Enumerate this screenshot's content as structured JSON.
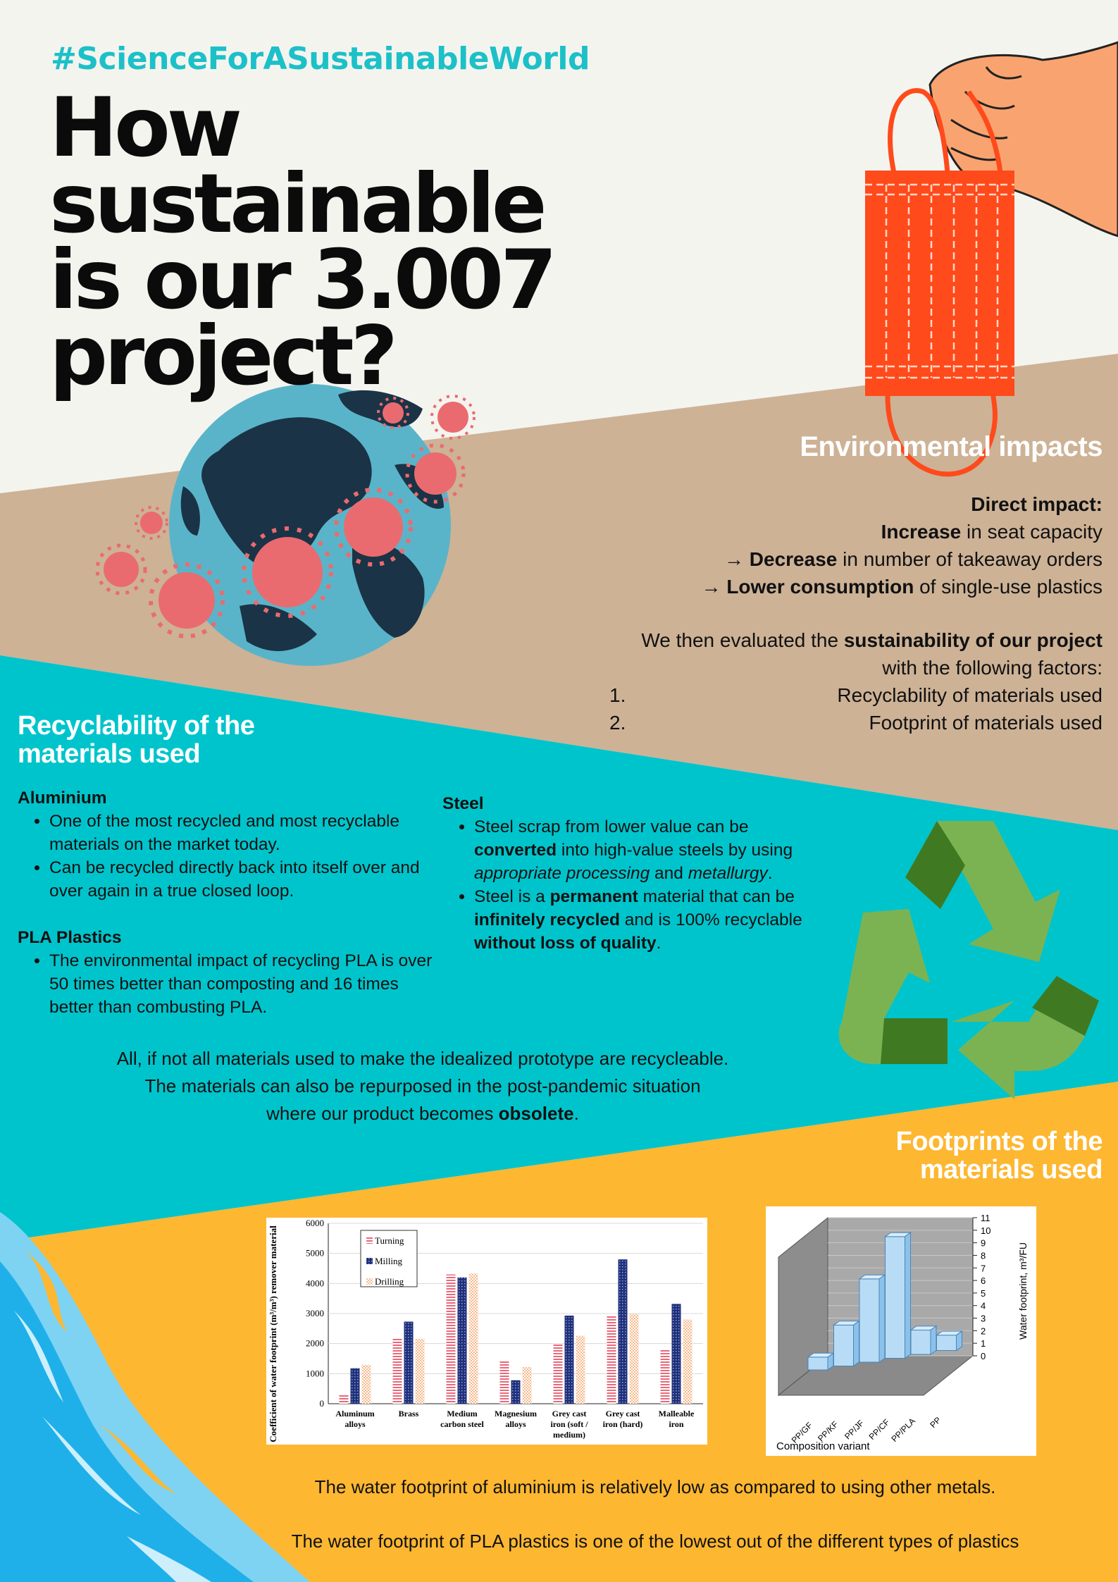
{
  "hashtag": "#ScienceForASustainableWorld",
  "title": {
    "line1": "How sustainable",
    "line2": "is our 3.007",
    "line3": "project?"
  },
  "environmental": {
    "heading": "Environmental impacts",
    "direct_impact": "Direct impact:",
    "line1_bold": "Increase",
    "line1_rest": " in seat capacity",
    "line2_arrow": "→",
    "line2_bold": "Decrease",
    "line2_rest": " in number of takeaway orders",
    "line3_arrow": "→",
    "line3_bold": "Lower consumption",
    "line3_rest": " of single-use plastics",
    "eval_pre": "We then evaluated the ",
    "eval_bold": "sustainability of our project",
    "eval_post": " with the following factors:",
    "factors": [
      {
        "num": "1.",
        "text": "Recyclability of materials used"
      },
      {
        "num": "2.",
        "text": "Footprint of materials used"
      }
    ]
  },
  "recyclability": {
    "heading_line1": "Recyclability of the",
    "heading_line2": "materials used",
    "aluminium": {
      "heading": "Aluminium",
      "bullet1": "One of the most recycled and most recyclable materials on the market today.",
      "bullet2": "Can be recycled directly back into itself over and over again in a true closed loop."
    },
    "pla": {
      "heading": "PLA Plastics",
      "bullet1": "The environmental impact of recycling PLA is over 50 times better than composting and 16 times better than combusting PLA."
    },
    "steel": {
      "heading": "Steel",
      "b1_a": "Steel scrap from lower value can be ",
      "b1_bold": "converted",
      "b1_b": " into high-value steels by using ",
      "b1_italic1": "appropriate processing",
      "b1_c": " and ",
      "b1_italic2": "metallurgy",
      "b1_d": ".",
      "b2_a": "Steel is a ",
      "b2_bold1": "permanent",
      "b2_b": " material that can be ",
      "b2_bold2": "infinitely recycled",
      "b2_c": " and is 100% recyclable ",
      "b2_bold3": "without loss of quality",
      "b2_d": "."
    },
    "summary_line1": "All, if not all materials used to make the idealized prototype are recycleable.",
    "summary_line2": "The materials can also be repurposed in the post-pandemic situation",
    "summary_line3_pre": "where our product becomes ",
    "summary_line3_bold": "obsolete",
    "summary_line3_post": "."
  },
  "footprints": {
    "heading_line1": "Footprints of the",
    "heading_line2": "materials used",
    "caption1": "The water footprint of aluminium is relatively low as compared to using other metals.",
    "caption2": "The water footprint of PLA plastics is one of the lowest out of the different types of plastics"
  },
  "colors": {
    "cream": "#f4f4ef",
    "tan": "#cdb296",
    "teal": "#00c4cc",
    "yellow": "#fdb731",
    "mask_red": "#ff4a1c",
    "recycle_green": "#7cb352",
    "recycle_dark": "#3f7a22"
  },
  "chart_data": [
    {
      "type": "bar",
      "title": "",
      "ylabel": "Coefficient of water footprint (m³/m³) remover material",
      "xlabel": "",
      "ylim": [
        0,
        6000
      ],
      "yticks": [
        "0",
        "1000",
        "2000",
        "3000",
        "4000",
        "5000",
        "6000"
      ],
      "legend_position": "top-left",
      "categories": [
        "Aluminum alloys",
        "Brass",
        "Medium carbon steel",
        "Magnesium alloys",
        "Grey cast iron (soft / medium)",
        "Grey cast iron (hard)",
        "Malleable iron"
      ],
      "series": [
        {
          "name": "Turning",
          "color": "#e8697a",
          "values": [
            300,
            2200,
            4300,
            1450,
            1980,
            2920,
            1800
          ]
        },
        {
          "name": "Milling",
          "color": "#1f2f78",
          "values": [
            1180,
            2730,
            4200,
            780,
            2930,
            4800,
            3320
          ]
        },
        {
          "name": "Drilling",
          "color": "#f7b88a",
          "values": [
            1290,
            2160,
            4330,
            1220,
            2260,
            2980,
            2800
          ]
        }
      ]
    },
    {
      "type": "bar",
      "title": "",
      "ylabel": "Water footprint, m³/FU",
      "xlabel": "Composition variant",
      "ylim": [
        0,
        11
      ],
      "yticks": [
        "0",
        "1",
        "2",
        "3",
        "4",
        "5",
        "6",
        "7",
        "8",
        "9",
        "10",
        "11"
      ],
      "categories": [
        "PP/GF",
        "PP/KF",
        "PP/JF",
        "PP/CF",
        "PP/PLA",
        "PP"
      ],
      "values": [
        1.0,
        3.2,
        6.5,
        9.5,
        1.9,
        1.2
      ],
      "bar_color": "#b8dcf5"
    }
  ]
}
